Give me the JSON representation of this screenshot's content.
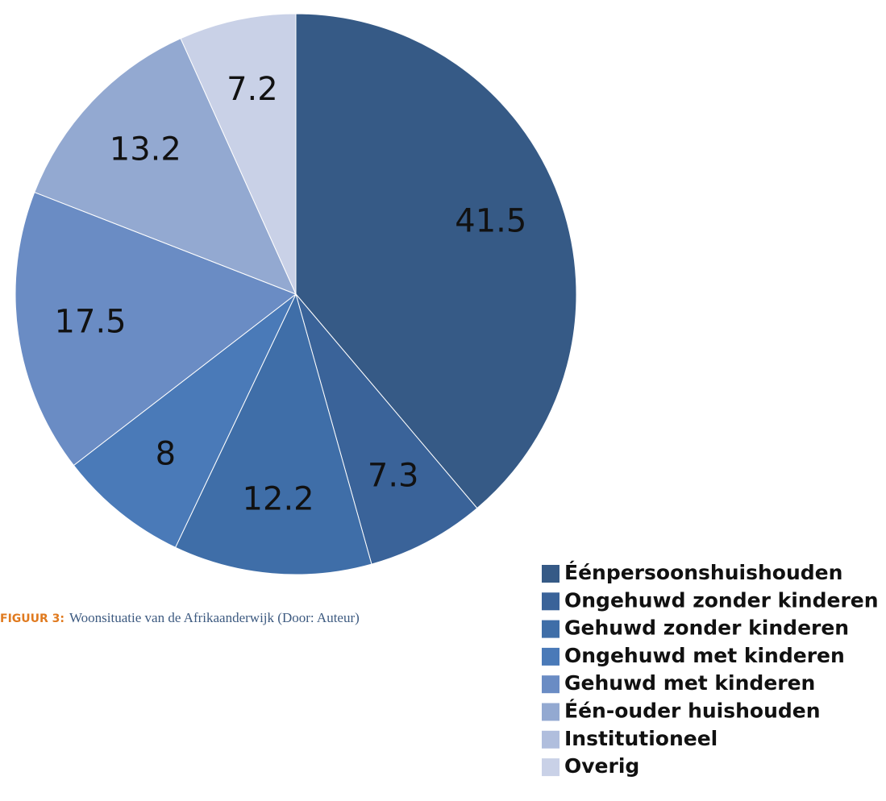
{
  "chart_data": {
    "type": "pie",
    "categories": [
      "Éénpersoonshuishouden",
      "Ongehuwd zonder kinderen",
      "Gehuwd zonder kinderen",
      "Ongehuwd met kinderen",
      "Gehuwd met kinderen",
      "Één-ouder huishouden",
      "Institutioneel",
      "Overig"
    ],
    "values": [
      41.5,
      7.3,
      12.2,
      8,
      17.5,
      13.2,
      0,
      7.2
    ],
    "colors": [
      "#365a86",
      "#3a6399",
      "#3f6ea8",
      "#4a7ab8",
      "#6a8cc4",
      "#93a9d1",
      "#b0bedd",
      "#c9d1e7"
    ],
    "legend": "bottom-right",
    "caption_label": "FIGUUR 3:",
    "caption": "Woonsituatie van de Afrikaanderwijk (Door: Auteur)"
  }
}
